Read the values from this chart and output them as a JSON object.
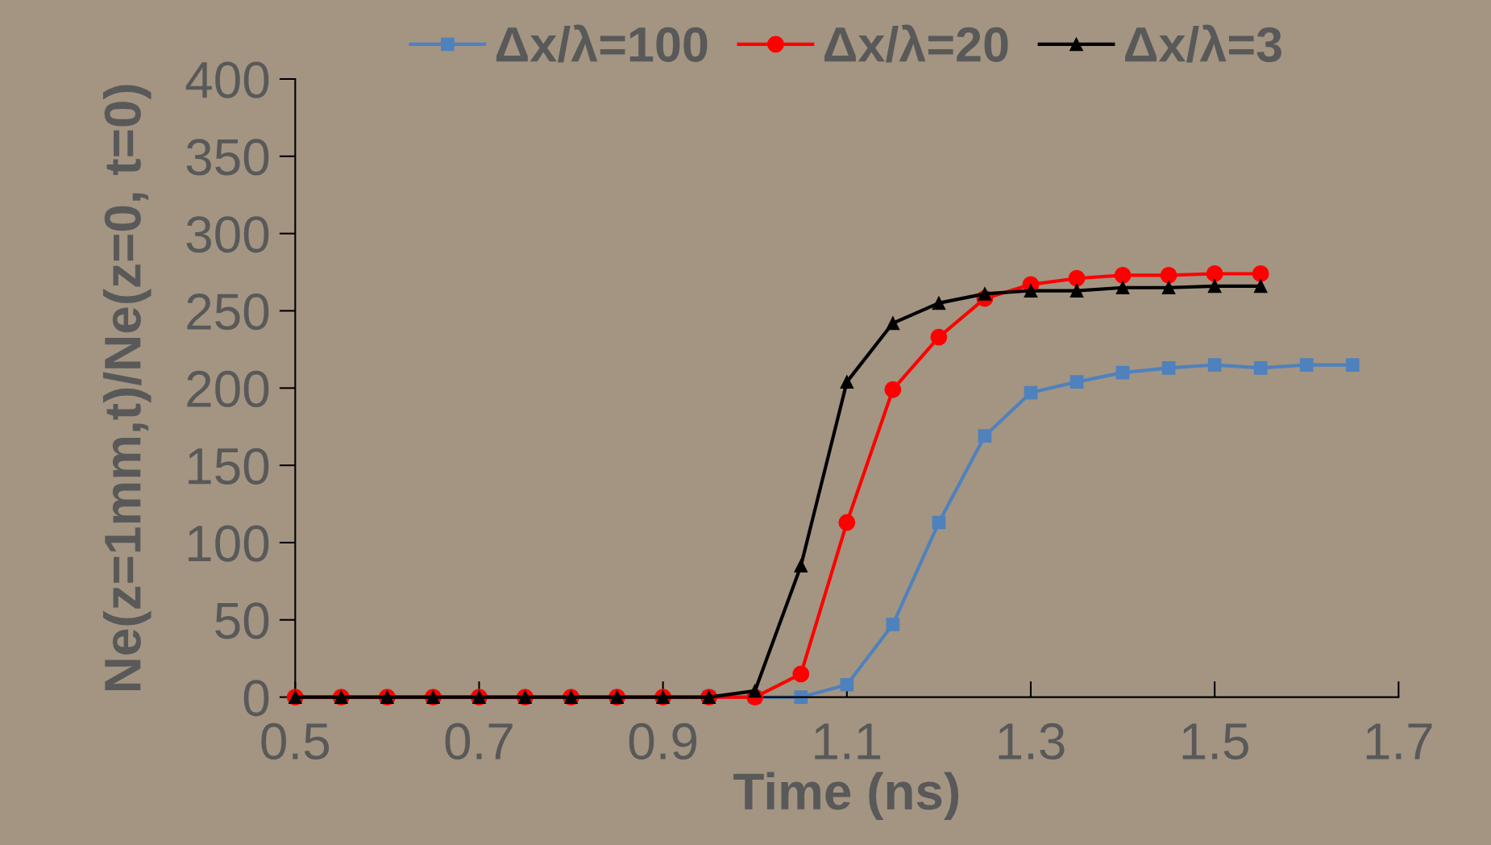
{
  "chart_data": {
    "type": "line",
    "xlabel": "Time (ns)",
    "ylabel": "Ne(z=1mm,t)/Ne(z=0, t=0)",
    "xlim": [
      0.5,
      1.7
    ],
    "xticks": [
      0.5,
      0.7,
      0.9,
      1.1,
      1.3,
      1.5,
      1.7
    ],
    "ylim": [
      0,
      400
    ],
    "yticks": [
      0,
      50,
      100,
      150,
      200,
      250,
      300,
      350,
      400
    ],
    "grid": false,
    "legend": "top",
    "line_style": "solid",
    "series": [
      {
        "name": "Δx/λ=100",
        "color": "#4f81bd",
        "marker": "square",
        "x": [
          0.95,
          1.0,
          1.05,
          1.1,
          1.15,
          1.2,
          1.25,
          1.3,
          1.35,
          1.4,
          1.45,
          1.5,
          1.55,
          1.6,
          1.65
        ],
        "values": [
          0,
          0,
          0,
          8,
          47,
          113,
          169,
          197,
          204,
          210,
          213,
          215,
          213,
          215,
          215
        ]
      },
      {
        "name": "Δx/λ=20",
        "color": "#ff0000",
        "marker": "circle",
        "x": [
          0.5,
          0.55,
          0.6,
          0.65,
          0.7,
          0.75,
          0.8,
          0.85,
          0.9,
          0.95,
          1.0,
          1.05,
          1.1,
          1.15,
          1.2,
          1.25,
          1.3,
          1.35,
          1.4,
          1.45,
          1.5,
          1.55
        ],
        "values": [
          0,
          0,
          0,
          0,
          0,
          0,
          0,
          0,
          0,
          0,
          0,
          15,
          113,
          199,
          233,
          258,
          267,
          271,
          273,
          273,
          274,
          274
        ]
      },
      {
        "name": "Δx/λ=3",
        "color": "#000000",
        "marker": "triangle",
        "x": [
          0.5,
          0.55,
          0.6,
          0.65,
          0.7,
          0.75,
          0.8,
          0.85,
          0.9,
          0.95,
          1.0,
          1.05,
          1.1,
          1.15,
          1.2,
          1.25,
          1.3,
          1.35,
          1.4,
          1.45,
          1.5,
          1.55
        ],
        "values": [
          0,
          0,
          0,
          0,
          0,
          0,
          0,
          0,
          0,
          0,
          4,
          85,
          204,
          242,
          255,
          261,
          263,
          263,
          265,
          265,
          266,
          266
        ]
      }
    ]
  }
}
